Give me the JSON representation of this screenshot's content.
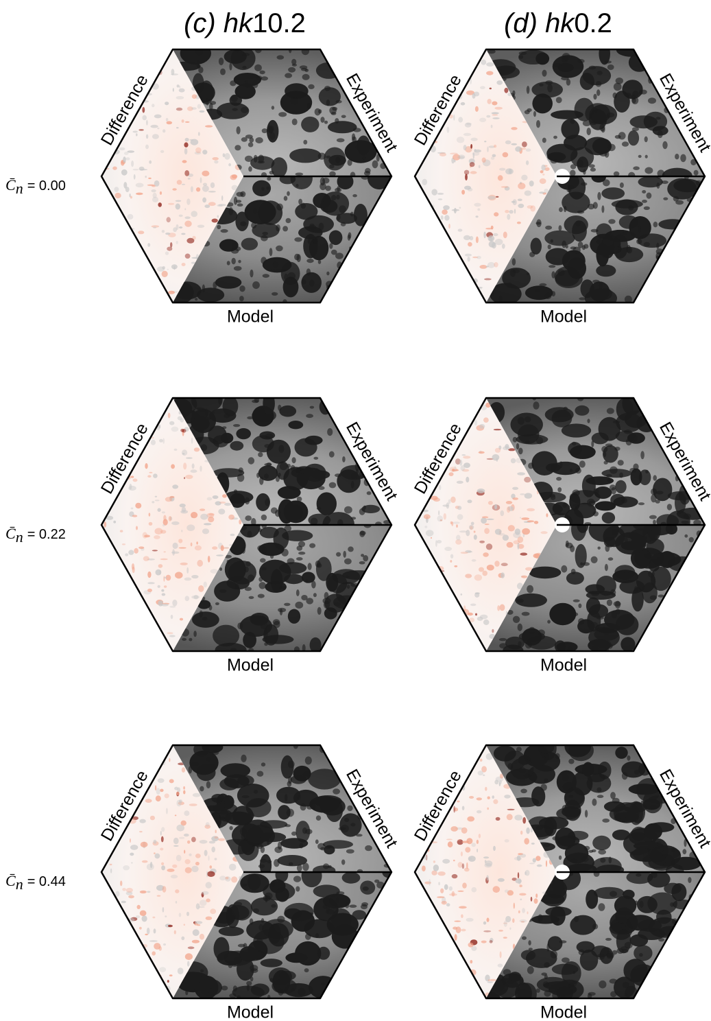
{
  "columns": [
    {
      "title_italic": "(c) hk",
      "title_plain": "10.2"
    },
    {
      "title_italic": "(d) hk",
      "title_plain": "0.2"
    }
  ],
  "rows": [
    {
      "symbol": "C̄",
      "subscript": "n",
      "value": "= 0.00",
      "panels": [
        {
          "difference": "Difference",
          "experiment": "Experiment",
          "model": "Model"
        },
        {
          "difference": "Difference",
          "experiment": "Experiment",
          "model": "Model"
        }
      ]
    },
    {
      "symbol": "C̄",
      "subscript": "n",
      "value": "= 0.22",
      "panels": [
        {
          "difference": "Difference",
          "experiment": "Experiment",
          "model": "Model"
        },
        {
          "difference": "Difference",
          "experiment": "Experiment",
          "model": "Model"
        }
      ]
    },
    {
      "symbol": "C̄",
      "subscript": "n",
      "value": "= 0.44",
      "panels": [
        {
          "difference": "Difference",
          "experiment": "Experiment",
          "model": "Model"
        },
        {
          "difference": "Difference",
          "experiment": "Experiment",
          "model": "Model"
        }
      ]
    }
  ]
}
